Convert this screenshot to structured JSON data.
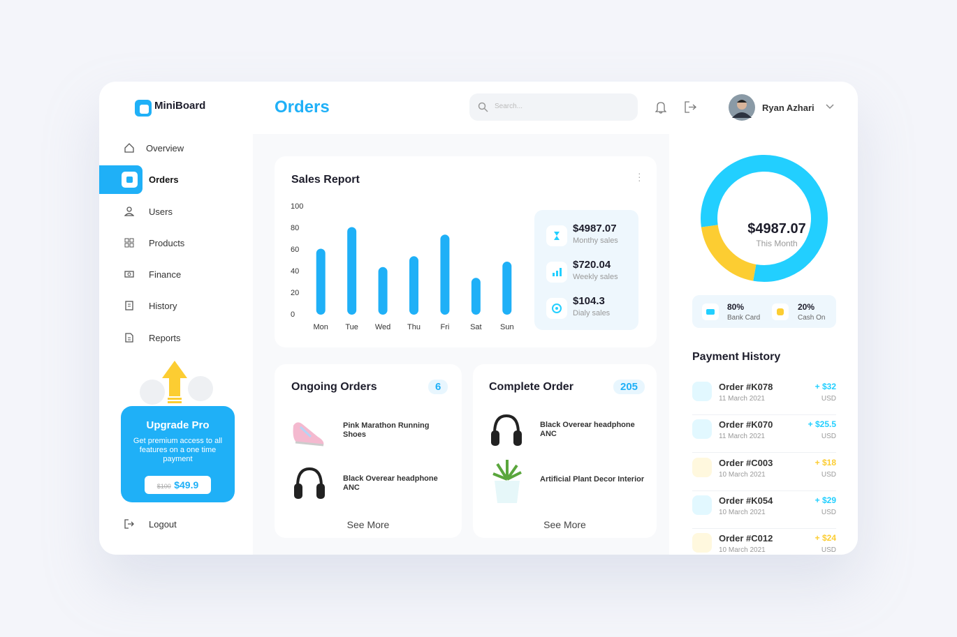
{
  "sidebar": {
    "logo": "MiniBoard",
    "nav": [
      "Overview",
      "Orders",
      "Users",
      "Products",
      "Finance",
      "History",
      "Reports"
    ],
    "upgrade": {
      "title": "Upgrade Pro",
      "text": "Get premium access to all features on a one time payment",
      "old_price": "$100",
      "price": "$49.9"
    },
    "logout": "Logout"
  },
  "header": {
    "title": "Orders",
    "search_placeholder": "Search...",
    "user": "Ryan Azhari"
  },
  "sales_report": {
    "type": "bar",
    "title": "Sales Report",
    "categories": [
      "Mon",
      "Tue",
      "Wed",
      "Thu",
      "Fri",
      "Sat",
      "Sun"
    ],
    "values": [
      61,
      81,
      44,
      54,
      74,
      34,
      49
    ],
    "color": "#1fb0f7",
    "ylim": [
      0,
      100
    ],
    "yticks": [
      0,
      20,
      40,
      60,
      80,
      100
    ],
    "grid": false,
    "stats": [
      {
        "value": "$4987.07",
        "label": "Monthy sales"
      },
      {
        "value": "$720.04",
        "label": "Weekly sales"
      },
      {
        "value": "$104.3",
        "label": "Dialy sales"
      }
    ]
  },
  "ongoing_orders": {
    "title": "Ongoing Orders",
    "count": 6,
    "items": [
      "Pink Marathon Running Shoes",
      "Black Overear headphone ANC"
    ],
    "link": "See More"
  },
  "complete_order": {
    "title": "Complete Order",
    "count": 205,
    "items": [
      "Black Overear headphone ANC",
      "Artificial Plant Decor Interior"
    ],
    "link": "See More"
  },
  "monthly": {
    "type": "pie",
    "total": "$4987.07",
    "total_label": "This Month",
    "categories": [
      "Bank Card",
      "Cash On"
    ],
    "values": [
      80,
      20
    ],
    "value_labels": [
      "80%",
      "20%"
    ],
    "colors": [
      "#22cfff",
      "#fccd32"
    ]
  },
  "payment_history": {
    "title": "Payment History",
    "rows": [
      {
        "order": "Order #K078",
        "date": "11 March 2021",
        "amount": "+ $32",
        "currency": "USD"
      },
      {
        "order": "Order #K070",
        "date": "11 March 2021",
        "amount": "+ $25.5",
        "currency": "USD"
      },
      {
        "order": "Order #C003",
        "date": "10 March 2021",
        "amount": "+ $18",
        "currency": "USD"
      },
      {
        "order": "Order #K054",
        "date": "10 March 2021",
        "amount": "+ $29",
        "currency": "USD"
      },
      {
        "order": "Order #C012",
        "date": "10 March 2021",
        "amount": "+ $24",
        "currency": "USD"
      }
    ]
  }
}
